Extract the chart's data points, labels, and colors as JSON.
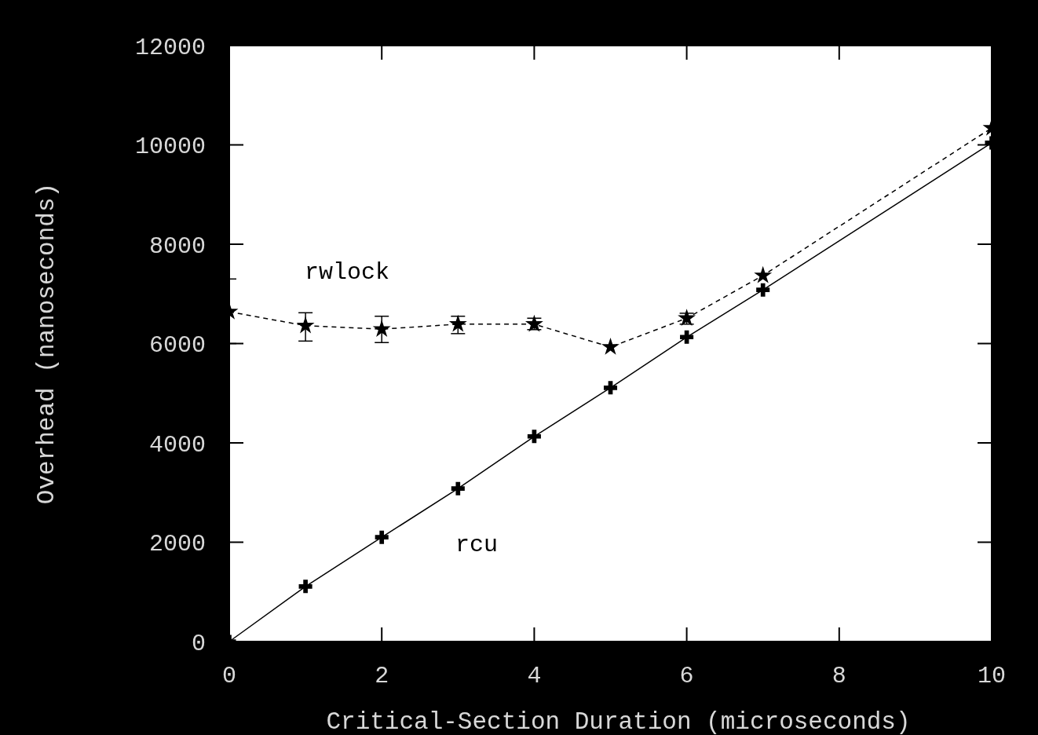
{
  "chart_data": {
    "type": "line",
    "xlabel": "Critical-Section Duration (microseconds)",
    "ylabel": "Overhead (nanoseconds)",
    "x": [
      0,
      1,
      2,
      3,
      4,
      5,
      6,
      7,
      10
    ],
    "xlim": [
      0,
      10
    ],
    "xticks": [
      0,
      2,
      4,
      6,
      8,
      10
    ],
    "ylim": [
      0,
      12000
    ],
    "yticks": [
      0,
      2000,
      4000,
      6000,
      8000,
      10000,
      12000
    ],
    "grid": false,
    "legend": false,
    "series": [
      {
        "name": "rwlock",
        "color": "#000000",
        "values": [
          6640,
          6360,
          6290,
          6390,
          6390,
          5930,
          6510,
          7370,
          10340
        ],
        "errors": [
          [
            6000,
            7300
          ],
          [
            6050,
            6620
          ],
          [
            6020,
            6550
          ],
          [
            6200,
            6550
          ],
          [
            6280,
            6510
          ],
          null,
          [
            6390,
            6610
          ],
          null,
          null
        ],
        "marker": "star",
        "line_style": "dashed"
      },
      {
        "name": "rcu",
        "color": "#000000",
        "values": [
          0,
          1110,
          2100,
          3080,
          4130,
          5110,
          6130,
          7080,
          10040
        ],
        "marker": "cross",
        "line_style": "solid"
      }
    ]
  }
}
